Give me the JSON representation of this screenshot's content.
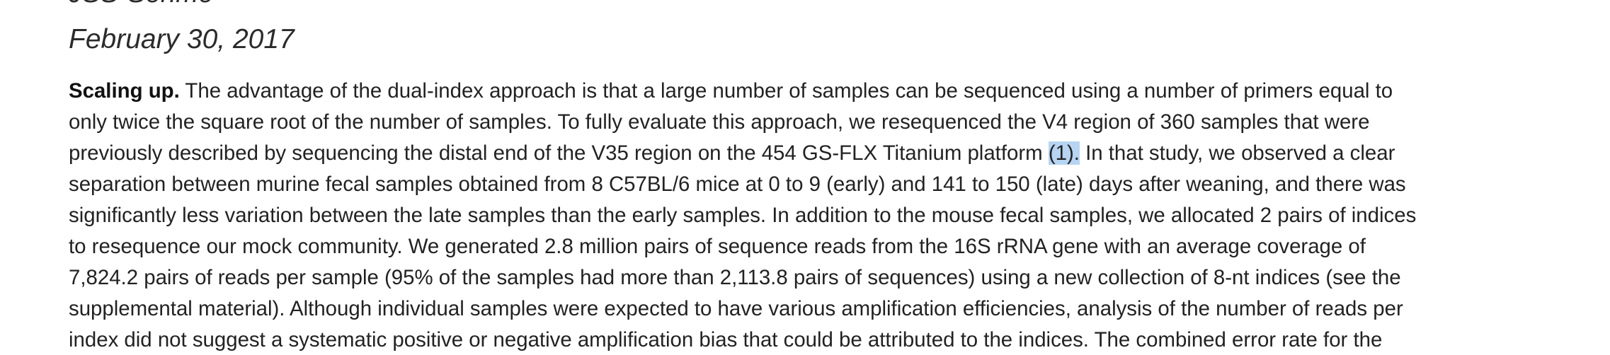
{
  "header": {
    "journal_name": "JSS-Senme",
    "date": "February 30, 2017"
  },
  "paragraph": {
    "lead": "Scaling up.",
    "line1_rest": " The advantage of the dual-index approach is that a large number of samples can be sequenced using a number of primers equal to",
    "line2": "only twice the square root of the number of samples. To fully evaluate this approach, we resequenced the V4 region of 360 samples that were",
    "line3_before": "previously described by sequencing the distal end of the V35 region on the 454 GS-FLX Titanium platform ",
    "line3_citation": "(1).",
    "line3_after": " In that study, we observed a clear",
    "line4": "separation between murine fecal samples obtained from 8 C57BL/6 mice at 0 to 9 (early) and 141 to 150 (late) days after weaning, and there was",
    "line5": "significantly less variation between the late samples than the early samples. In addition to the mouse fecal samples, we allocated 2 pairs of indices",
    "line6": "to resequence our mock community. We generated 2.8 million pairs of sequence reads from the 16S rRNA gene with an average coverage of",
    "line7": "7,824.2 pairs of reads per sample (95% of the samples had more than 2,113.8 pairs of sequences) using a new collection of 8-nt indices (see the",
    "line8": "supplemental material). Although individual samples were expected to have various amplification efficiencies, analysis of the number of reads per",
    "line9": "index did not suggest a systematic positive or negative amplification bias that could be attributed to the indices. The combined error rate for the"
  },
  "colors": {
    "text": "#222222",
    "selection_highlight": "#b7d4f2",
    "background": "#ffffff"
  }
}
